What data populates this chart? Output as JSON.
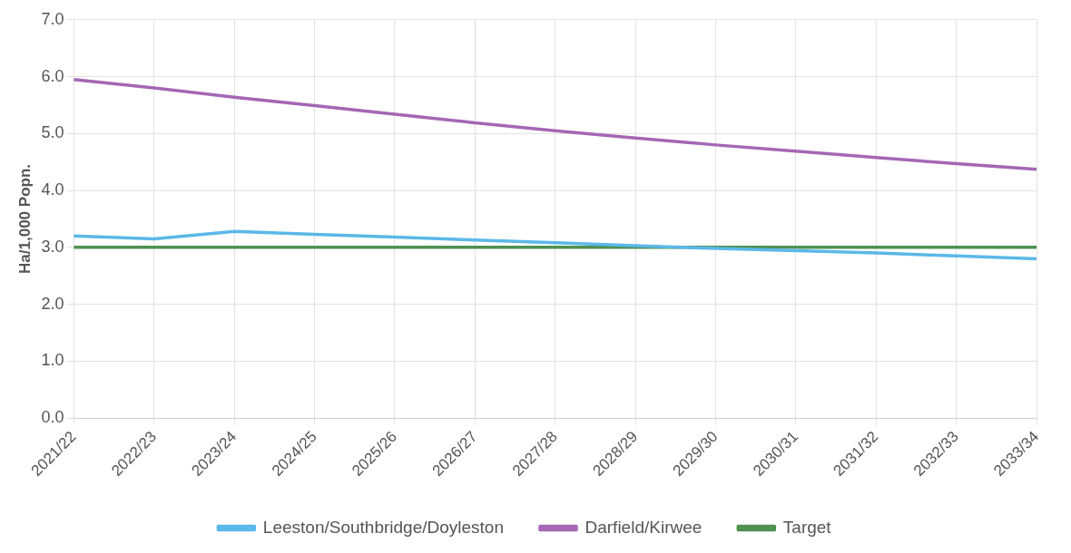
{
  "chart_data": {
    "type": "line",
    "ylabel": "Ha/1,000 Popn.",
    "categories": [
      "2021/22",
      "2022/23",
      "2023/24",
      "2024/25",
      "2025/26",
      "2026/27",
      "2027/28",
      "2028/29",
      "2029/30",
      "2030/31",
      "2031/32",
      "2032/33",
      "2033/34"
    ],
    "series": [
      {
        "name": "Leeston/Southbridge/Doyleston",
        "color": "#5bb8e8",
        "values": [
          3.2,
          3.15,
          3.28,
          3.23,
          3.18,
          3.13,
          3.08,
          3.03,
          2.98,
          2.94,
          2.9,
          2.85,
          2.8
        ]
      },
      {
        "name": "Darfield/Kirwee",
        "color": "#a566b5",
        "values": [
          5.95,
          5.8,
          5.64,
          5.49,
          5.34,
          5.19,
          5.05,
          4.92,
          4.8,
          4.69,
          4.58,
          4.47,
          4.37
        ]
      },
      {
        "name": "Target",
        "color": "#4e9150",
        "values": [
          3,
          3,
          3,
          3,
          3,
          3,
          3,
          3,
          3,
          3,
          3,
          3,
          3
        ]
      }
    ],
    "ylim": [
      0,
      7
    ],
    "yticks": [
      {
        "value": 0,
        "label": "0.0"
      },
      {
        "value": 1,
        "label": "1.0"
      },
      {
        "value": 2,
        "label": "2.0"
      },
      {
        "value": 3,
        "label": "3.0"
      },
      {
        "value": 4,
        "label": "4.0"
      },
      {
        "value": 5,
        "label": "5.0"
      },
      {
        "value": 6,
        "label": "6.0"
      },
      {
        "value": 7,
        "label": "7.0"
      }
    ],
    "grid": true,
    "legend": "bottom",
    "marker": "none",
    "line_style": "solid"
  }
}
